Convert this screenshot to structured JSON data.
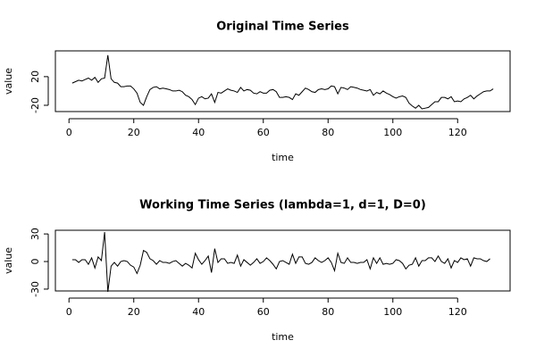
{
  "chart_data": [
    {
      "type": "line",
      "title": "Original Time Series",
      "xlabel": "time",
      "ylabel": "value",
      "color": "#000000",
      "x": [
        1,
        2,
        3,
        4,
        5,
        6,
        7,
        8,
        9,
        10,
        11,
        12,
        13,
        14,
        15,
        16,
        17,
        18,
        19,
        20,
        21,
        22,
        23,
        24,
        25,
        26,
        27,
        28,
        29,
        30,
        31,
        32,
        33,
        34,
        35,
        36,
        37,
        38,
        39,
        40,
        41,
        42,
        43,
        44,
        45,
        46,
        47,
        48,
        49,
        50,
        51,
        52,
        53,
        54,
        55,
        56,
        57,
        58,
        59,
        60,
        61,
        62,
        63,
        64,
        65,
        66,
        67,
        68,
        69,
        70,
        71,
        72,
        73,
        74,
        75,
        76,
        77,
        78,
        79,
        80,
        81,
        82,
        83,
        84,
        85,
        86,
        87,
        88,
        89,
        90,
        91,
        92,
        93,
        94,
        95,
        96,
        97,
        98,
        99,
        100,
        101,
        102,
        103,
        104,
        105,
        106,
        107,
        108,
        109,
        110,
        111,
        112,
        113,
        114,
        115,
        116,
        117,
        118,
        119,
        120,
        121,
        122,
        123,
        124,
        125,
        126,
        127,
        128,
        129,
        130,
        131
      ],
      "values": [
        11,
        13,
        15,
        14,
        16,
        18,
        15,
        19,
        12,
        17,
        18,
        50,
        17,
        12,
        11,
        6,
        6,
        7,
        7,
        3,
        -3,
        -16,
        -20,
        -8,
        2,
        5,
        6,
        3,
        4,
        3,
        2,
        0,
        0,
        1,
        -1,
        -6,
        -8,
        -12,
        -19,
        -10,
        -8,
        -11,
        -10,
        -4,
        -16,
        -2,
        -3,
        0,
        3,
        1,
        0,
        -2,
        5,
        0,
        2,
        1,
        -3,
        -4,
        -1,
        -3,
        -3,
        1,
        2,
        -1,
        -9,
        -9,
        -8,
        -9,
        -12,
        -4,
        -6,
        -1,
        4,
        2,
        -1,
        -2,
        2,
        3,
        2,
        3,
        7,
        6,
        -4,
        5,
        4,
        2,
        6,
        5,
        4,
        2,
        1,
        0,
        2,
        -6,
        -2,
        -4,
        0,
        -3,
        -5,
        -8,
        -10,
        -8,
        -7,
        -9,
        -17,
        -21,
        -24,
        -20,
        -25,
        -24,
        -23,
        -19,
        -15,
        -15,
        -9,
        -9,
        -11,
        -8,
        -15,
        -14,
        -15,
        -11,
        -9,
        -6,
        -11,
        -7,
        -4,
        -1,
        0,
        0,
        3
      ],
      "xlim": [
        -4.2,
        136.2
      ],
      "ylim": [
        -28.75,
        56
      ],
      "xticks": [
        0,
        20,
        40,
        60,
        80,
        100,
        120
      ],
      "yticks": [
        -20,
        20
      ]
    },
    {
      "type": "line",
      "title": "Working Time Series (lambda=1, d=1, D=0)",
      "xlabel": "time",
      "ylabel": "value",
      "color": "#000000",
      "x": [
        1,
        2,
        3,
        4,
        5,
        6,
        7,
        8,
        9,
        10,
        11,
        12,
        13,
        14,
        15,
        16,
        17,
        18,
        19,
        20,
        21,
        22,
        23,
        24,
        25,
        26,
        27,
        28,
        29,
        30,
        31,
        32,
        33,
        34,
        35,
        36,
        37,
        38,
        39,
        40,
        41,
        42,
        43,
        44,
        45,
        46,
        47,
        48,
        49,
        50,
        51,
        52,
        53,
        54,
        55,
        56,
        57,
        58,
        59,
        60,
        61,
        62,
        63,
        64,
        65,
        66,
        67,
        68,
        69,
        70,
        71,
        72,
        73,
        74,
        75,
        76,
        77,
        78,
        79,
        80,
        81,
        82,
        83,
        84,
        85,
        86,
        87,
        88,
        89,
        90,
        91,
        92,
        93,
        94,
        95,
        96,
        97,
        98,
        99,
        100,
        101,
        102,
        103,
        104,
        105,
        106,
        107,
        108,
        109,
        110,
        111,
        112,
        113,
        114,
        115,
        116,
        117,
        118,
        119,
        120,
        121,
        122,
        123,
        124,
        125,
        126,
        127,
        128,
        129,
        130
      ],
      "values": [
        2,
        2,
        -1,
        2,
        2,
        -3,
        4,
        -7,
        5,
        1,
        32,
        -33,
        -5,
        -1,
        -5,
        0,
        1,
        0,
        -4,
        -6,
        -13,
        -4,
        12,
        10,
        3,
        1,
        -3,
        1,
        -1,
        -1,
        -2,
        0,
        1,
        -2,
        -5,
        -2,
        -4,
        -7,
        9,
        2,
        -3,
        1,
        6,
        -12,
        14,
        -1,
        3,
        3,
        -2,
        -1,
        -2,
        7,
        -5,
        2,
        -1,
        -4,
        -1,
        3,
        -2,
        0,
        4,
        1,
        -3,
        -8,
        0,
        1,
        -1,
        -3,
        8,
        -2,
        5,
        5,
        -2,
        -3,
        -1,
        4,
        1,
        -1,
        1,
        4,
        -1,
        -10,
        9,
        -1,
        -2,
        4,
        -1,
        -1,
        -2,
        -1,
        -1,
        2,
        -8,
        4,
        -2,
        4,
        -3,
        -2,
        -3,
        -2,
        2,
        1,
        -2,
        -8,
        -4,
        -3,
        4,
        -5,
        1,
        1,
        4,
        4,
        0,
        6,
        0,
        -2,
        3,
        -7,
        1,
        -1,
        4,
        2,
        3,
        -5,
        4,
        3,
        3,
        1,
        0,
        3
      ],
      "xlim": [
        -4.2,
        136.2
      ],
      "ylim": [
        -32,
        34
      ],
      "xticks": [
        0,
        20,
        40,
        60,
        80,
        100,
        120
      ],
      "yticks": [
        -30,
        0,
        30
      ]
    }
  ]
}
